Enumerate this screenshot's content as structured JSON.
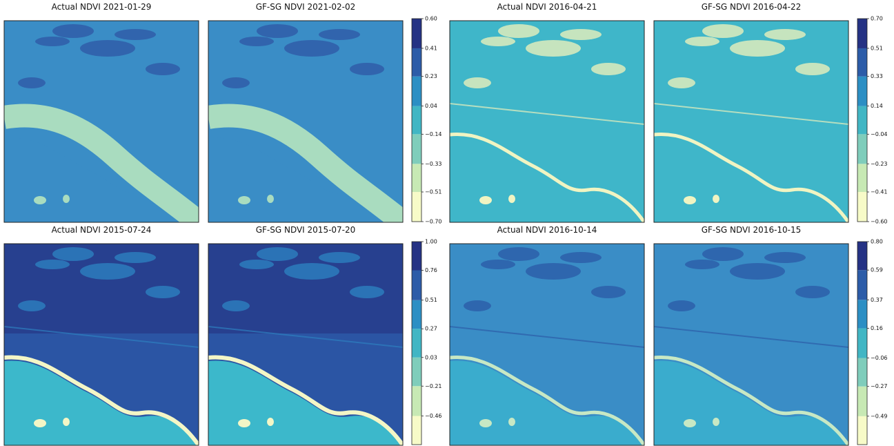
{
  "chart_data": [
    {
      "type": "map-pair",
      "titles": [
        "Actual NDVI 2021-01-29",
        "GF-SG NDVI 2021-02-02"
      ],
      "colors": [
        "#f7fbc8",
        "#c7e9b4",
        "#7fcdbb",
        "#41b6c4",
        "#2c8fc4",
        "#2c5ca8",
        "#253284"
      ],
      "zlim": [
        -0.7,
        0.6
      ],
      "zticks": [
        {
          "value": -0.7,
          "label": "−0.70"
        },
        {
          "value": -0.51,
          "label": "−0.51"
        },
        {
          "value": -0.33,
          "label": "−0.33"
        },
        {
          "value": -0.14,
          "label": "−0.14"
        },
        0.04,
        0.23,
        0.41,
        {
          "value": 0.6,
          "label": "0.60"
        }
      ]
    },
    {
      "type": "map-pair",
      "titles": [
        "Actual NDVI 2016-04-21",
        "GF-SG NDVI 2016-04-22"
      ],
      "colors": [
        "#f7fbc8",
        "#c7e9b4",
        "#7fcdbb",
        "#41b6c4",
        "#2c8fc4",
        "#2c5ca8",
        "#253284"
      ],
      "zlim": [
        -0.6,
        0.7
      ],
      "zticks": [
        {
          "value": -0.6,
          "label": "−0.60"
        },
        {
          "value": -0.41,
          "label": "−0.41"
        },
        {
          "value": -0.23,
          "label": "−0.23"
        },
        {
          "value": -0.04,
          "label": "−0.04"
        },
        0.14,
        0.33,
        0.51,
        {
          "value": 0.7,
          "label": "0.70"
        }
      ]
    },
    {
      "type": "map-pair",
      "titles": [
        "Actual NDVI 2015-07-24",
        "GF-SG NDVI 2015-07-20"
      ],
      "colors": [
        "#f7fbc8",
        "#c7e9b4",
        "#7fcdbb",
        "#41b6c4",
        "#2c8fc4",
        "#2c5ca8",
        "#253284"
      ],
      "zlim": [
        -0.7,
        1
      ],
      "zticks": [
        {
          "value": -0.46,
          "label": "−0.46"
        },
        {
          "value": -0.21,
          "label": "−0.21"
        },
        0.03,
        0.27,
        0.51,
        0.76,
        {
          "value": 1,
          "label": "1.00"
        }
      ]
    },
    {
      "type": "map-pair",
      "titles": [
        "Actual NDVI 2016-10-14",
        "GF-SG NDVI 2016-10-15"
      ],
      "colors": [
        "#f7fbc8",
        "#c7e9b4",
        "#7fcdbb",
        "#41b6c4",
        "#2c8fc4",
        "#2c5ca8",
        "#253284"
      ],
      "zlim": [
        -0.7,
        0.8
      ],
      "zticks": [
        {
          "value": -0.49,
          "label": "−0.49"
        },
        {
          "value": -0.27,
          "label": "−0.27"
        },
        {
          "value": -0.06,
          "label": "−0.06"
        },
        0.16,
        0.37,
        0.59,
        {
          "value": 0.8,
          "label": "0.80"
        }
      ]
    }
  ]
}
